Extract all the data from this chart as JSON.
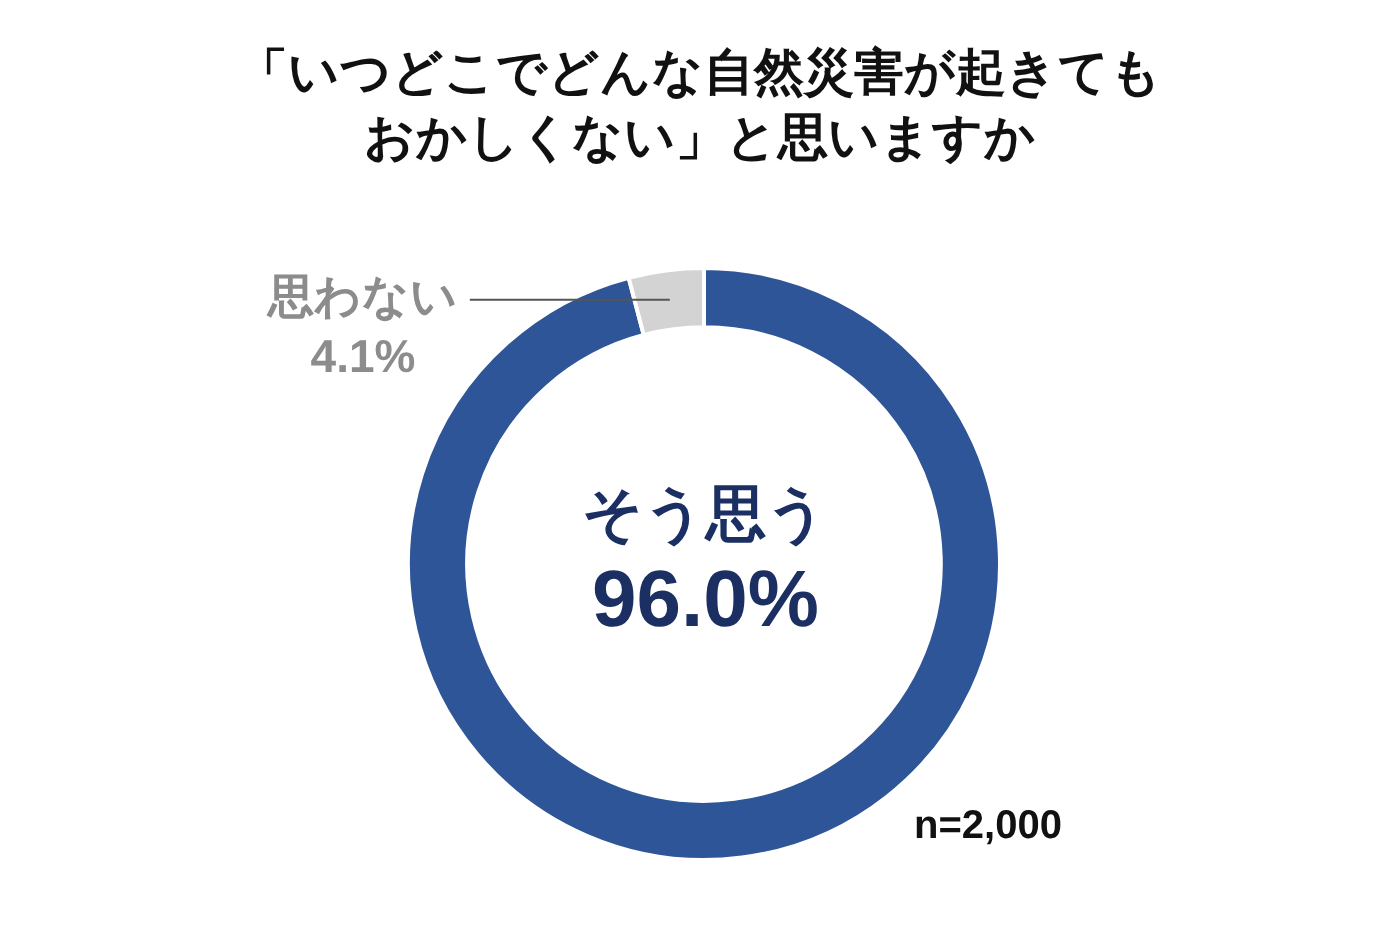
{
  "chart_data": {
    "type": "donut",
    "title": "「いつどこでどんな自然災害が起きてもおかしくない」と思いますか",
    "categories": [
      "そう思う",
      "思わない"
    ],
    "values": [
      96.0,
      4.1
    ],
    "colors": [
      "#2e5597",
      "#d3d3d3"
    ],
    "value_labels": [
      "96.0%",
      "4.1%"
    ],
    "annotations": [
      "n=2,000"
    ]
  }
}
